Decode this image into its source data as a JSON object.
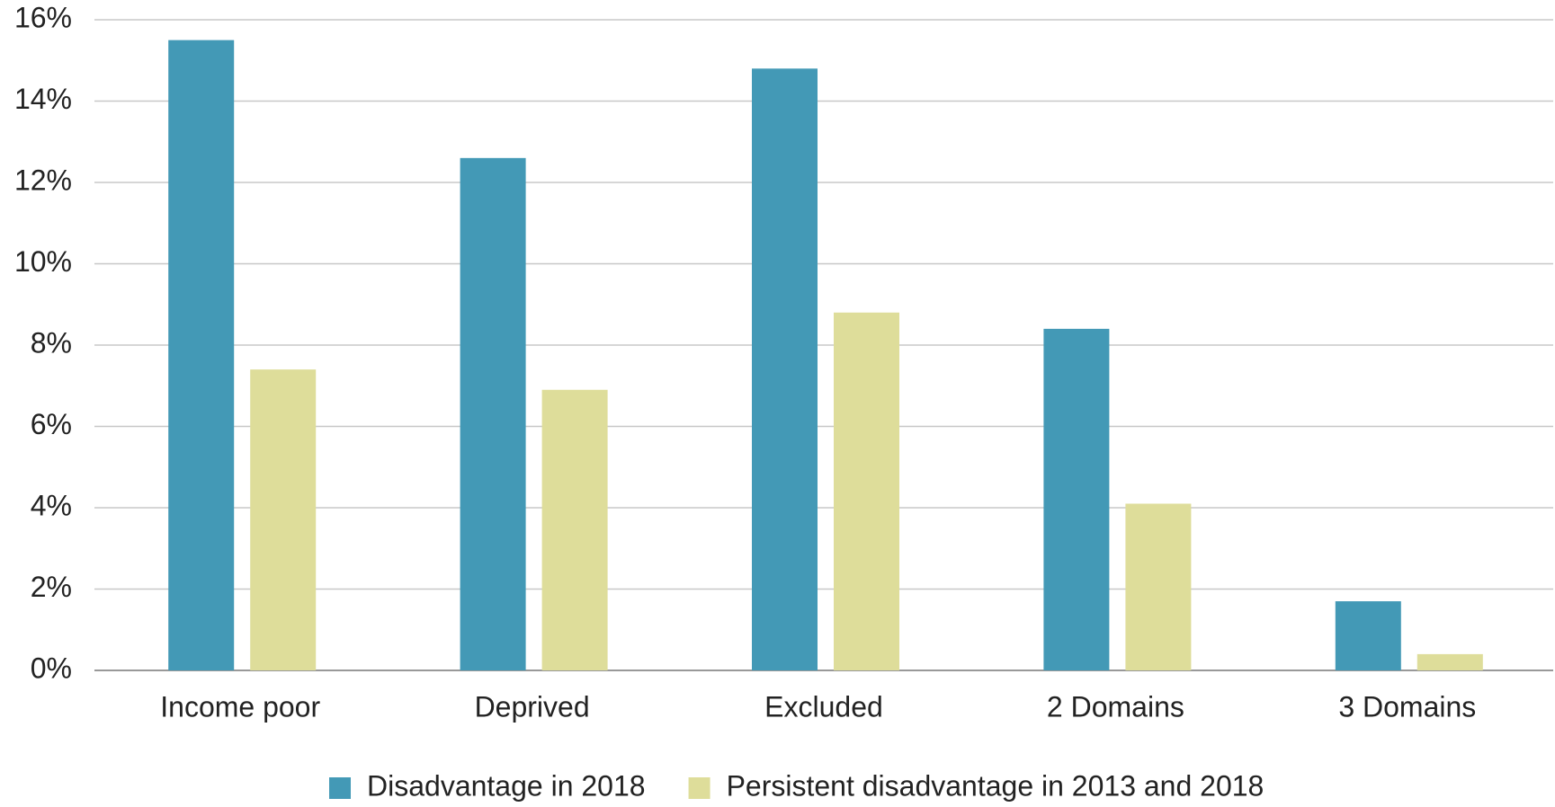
{
  "chart_data": {
    "type": "bar",
    "categories": [
      "Income poor",
      "Deprived",
      "Excluded",
      "2 Domains",
      "3 Domains"
    ],
    "series": [
      {
        "name": "Disadvantage in 2018",
        "color": "#4399b6",
        "values": [
          15.5,
          12.6,
          14.8,
          8.4,
          1.7
        ]
      },
      {
        "name": "Persistent disadvantage in 2013 and 2018",
        "color": "#dedd9a",
        "values": [
          7.4,
          6.9,
          8.8,
          4.1,
          0.4
        ]
      }
    ],
    "ylim": [
      0,
      16
    ],
    "yticks": [
      {
        "value": 0,
        "label": "0%"
      },
      {
        "value": 2,
        "label": "2%"
      },
      {
        "value": 4,
        "label": "4%"
      },
      {
        "value": 6,
        "label": "6%"
      },
      {
        "value": 8,
        "label": "8%"
      },
      {
        "value": 10,
        "label": "10%"
      },
      {
        "value": 12,
        "label": "12%"
      },
      {
        "value": 14,
        "label": "14%"
      },
      {
        "value": 16,
        "label": "16%"
      }
    ],
    "grid": true,
    "legend": "bottom"
  }
}
